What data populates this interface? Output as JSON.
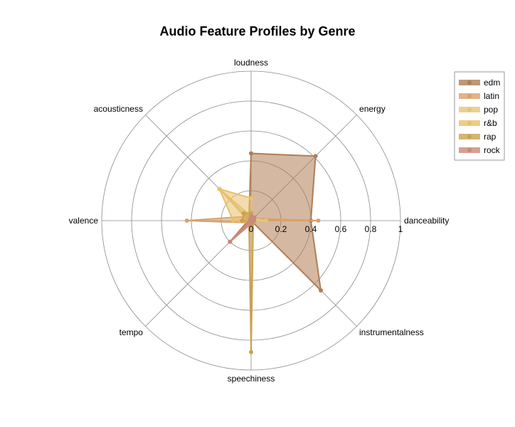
{
  "chart_data": {
    "type": "radar",
    "title": "Audio Feature Profiles by Genre",
    "axes": [
      "danceability",
      "energy",
      "loudness",
      "acousticness",
      "valence",
      "tempo",
      "speechiness",
      "instrumentalness"
    ],
    "radial_range": [
      0,
      1
    ],
    "radial_ticks": [
      "0",
      "0.2",
      "0.4",
      "0.6",
      "0.8",
      "1"
    ],
    "legend_position": "top-right",
    "series": [
      {
        "name": "edm",
        "color": "#b07d55",
        "values": [
          0.4,
          0.61,
          0.45,
          0.02,
          0.02,
          0.2,
          0.0,
          0.66
        ]
      },
      {
        "name": "latin",
        "color": "#d9a06a",
        "values": [
          0.45,
          0.02,
          0.02,
          0.04,
          0.43,
          0.02,
          0.02,
          0.0
        ]
      },
      {
        "name": "pop",
        "color": "#e6c47a",
        "values": [
          0.1,
          0.02,
          0.03,
          0.3,
          0.02,
          0.02,
          0.02,
          0.0
        ]
      },
      {
        "name": "r&b",
        "color": "#e8c06a",
        "values": [
          0.01,
          0.01,
          0.15,
          0.3,
          0.12,
          0.02,
          0.03,
          0.02
        ]
      },
      {
        "name": "rap",
        "color": "#c9a24f",
        "values": [
          0.02,
          0.03,
          0.05,
          0.07,
          0.06,
          0.02,
          0.88,
          0.02
        ]
      },
      {
        "name": "rock",
        "color": "#c98a78",
        "values": [
          0.02,
          0.03,
          0.03,
          0.01,
          0.01,
          0.2,
          0.02,
          0.01
        ]
      }
    ]
  }
}
